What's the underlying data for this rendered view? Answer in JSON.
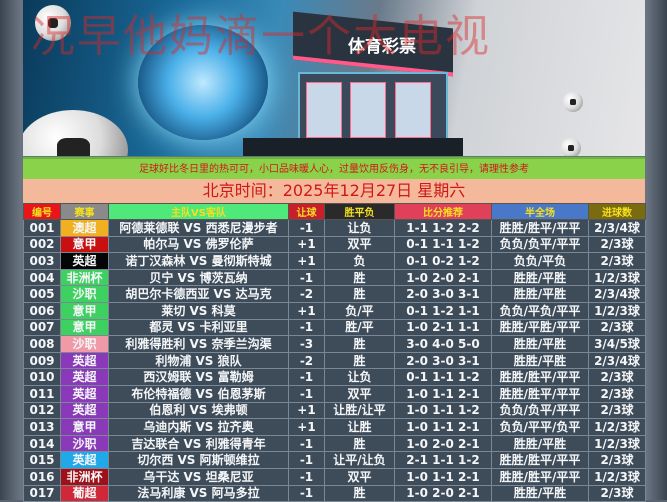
{
  "banner": {
    "watermark": "况早他妈滴一个大电视",
    "store_sign": "体育彩票"
  },
  "notice": "足球好比冬日里的热可可，小口品味暖人心，过量饮用反伤身，无不良引导，请理性参考",
  "date_line": "北京时间：2025年12月27日  星期六",
  "headers": [
    {
      "label": "编号",
      "color": "#e8161a"
    },
    {
      "label": "赛事",
      "color": "#8a8a8a"
    },
    {
      "label": "主队VS客队",
      "color": "#4fe87a"
    },
    {
      "label": "让球",
      "color": "#c8202a"
    },
    {
      "label": "胜平负",
      "color": "#2a2a2a"
    },
    {
      "label": "比分推荐",
      "color": "#e0405a"
    },
    {
      "label": "半全场",
      "color": "#4a78c8"
    },
    {
      "label": "进球数",
      "color": "#7a6a10"
    }
  ],
  "rows": [
    {
      "no": "001",
      "league": "澳超",
      "league_color": "#f0b020",
      "match": "阿德莱德联 VS 西悉尼漫步者",
      "handicap": "-1",
      "result": "让负",
      "scores": "1-1 1-2 2-2",
      "half_full": "胜胜/胜平/平平",
      "goals": "2/3/4球"
    },
    {
      "no": "002",
      "league": "意甲",
      "league_color": "#c81010",
      "match": "帕尔马 VS 佛罗伦萨",
      "handicap": "+1",
      "result": "双平",
      "scores": "0-1 1-1 1-2",
      "half_full": "负负/负平/平平",
      "goals": "2/3球"
    },
    {
      "no": "003",
      "league": "英超",
      "league_color": "#050505",
      "match": "诺丁汉森林 VS 曼彻斯特城",
      "handicap": "+1",
      "result": "负",
      "scores": "0-1 0-2 1-2",
      "half_full": "负负/平负",
      "goals": "2/3球"
    },
    {
      "no": "004",
      "league": "非洲杯",
      "league_color": "#3ed060",
      "match": "贝宁 VS 博茨瓦纳",
      "handicap": "-1",
      "result": "胜",
      "scores": "1-0 2-0 2-1",
      "half_full": "胜胜/平胜",
      "goals": "1/2/3球"
    },
    {
      "no": "005",
      "league": "沙职",
      "league_color": "#3ed060",
      "match": "胡巴尔卡德西亚 VS 达马克",
      "handicap": "-2",
      "result": "胜",
      "scores": "2-0 3-0 3-1",
      "half_full": "胜胜/平胜",
      "goals": "2/3/4球"
    },
    {
      "no": "006",
      "league": "意甲",
      "league_color": "#3ed060",
      "match": "莱切 VS 科莫",
      "handicap": "+1",
      "result": "负/平",
      "scores": "0-1 1-2 1-1",
      "half_full": "负负/平负/平平",
      "goals": "1/2/3球"
    },
    {
      "no": "007",
      "league": "意甲",
      "league_color": "#3ed060",
      "match": "都灵 VS 卡利亚里",
      "handicap": "-1",
      "result": "胜/平",
      "scores": "1-0 2-1 1-1",
      "half_full": "胜胜/平胜/平平",
      "goals": "2/3球"
    },
    {
      "no": "008",
      "league": "沙职",
      "league_color": "#f09aa8",
      "match": "利雅得胜利 VS 奈季兰沟渠",
      "handicap": "-3",
      "result": "胜",
      "scores": "3-0 4-0 5-0",
      "half_full": "胜胜/平胜",
      "goals": "3/4/5球"
    },
    {
      "no": "009",
      "league": "英超",
      "league_color": "#8a3ab8",
      "match": "利物浦 VS 狼队",
      "handicap": "-2",
      "result": "胜",
      "scores": "2-0 3-0 3-1",
      "half_full": "胜胜/平胜",
      "goals": "2/3/4球"
    },
    {
      "no": "010",
      "league": "英超",
      "league_color": "#8a3ab8",
      "match": "西汉姆联 VS 富勒姆",
      "handicap": "-1",
      "result": "让负",
      "scores": "0-1 1-1 1-2",
      "half_full": "胜胜/胜平/平平",
      "goals": "2/3球"
    },
    {
      "no": "011",
      "league": "英超",
      "league_color": "#8a3ab8",
      "match": "布伦特福德 VS 伯恩茅斯",
      "handicap": "-1",
      "result": "双平",
      "scores": "1-0 1-1 2-1",
      "half_full": "胜胜/胜平/平平",
      "goals": "2/3球"
    },
    {
      "no": "012",
      "league": "英超",
      "league_color": "#8a3ab8",
      "match": "伯恩利 VS 埃弗顿",
      "handicap": "+1",
      "result": "让胜/让平",
      "scores": "1-0 1-1 1-2",
      "half_full": "负负/负平/平平",
      "goals": "2/3球"
    },
    {
      "no": "013",
      "league": "意甲",
      "league_color": "#8a3ab8",
      "match": "乌迪内斯 VS 拉齐奥",
      "handicap": "+1",
      "result": "让胜",
      "scores": "1-0 1-1 2-1",
      "half_full": "负负/平平/负平",
      "goals": "1/2/3球"
    },
    {
      "no": "014",
      "league": "沙职",
      "league_color": "#8a3ab8",
      "match": "吉达联合 VS 利雅得青年",
      "handicap": "-1",
      "result": "胜",
      "scores": "1-0 2-0 2-1",
      "half_full": "胜胜/平胜",
      "goals": "1/2/3球"
    },
    {
      "no": "015",
      "league": "英超",
      "league_color": "#20a8e8",
      "match": "切尔西 VS 阿斯顿维拉",
      "handicap": "-1",
      "result": "让平/让负",
      "scores": "2-1 1-1 1-2",
      "half_full": "胜胜/胜平/平平",
      "goals": "2/3球"
    },
    {
      "no": "016",
      "league": "非洲杯",
      "league_color": "#a01018",
      "match": "乌干达 VS 坦桑尼亚",
      "handicap": "-1",
      "result": "双平",
      "scores": "1-0 1-1 2-1",
      "half_full": "胜胜/胜平/平平",
      "goals": "1/2/3球"
    },
    {
      "no": "017",
      "league": "葡超",
      "league_color": "#d02838",
      "match": "法马利康 VS 阿马多拉",
      "handicap": "-1",
      "result": "胜",
      "scores": "1-0 2-0 2-1",
      "half_full": "胜胜/平胜",
      "goals": "2/3球"
    }
  ]
}
